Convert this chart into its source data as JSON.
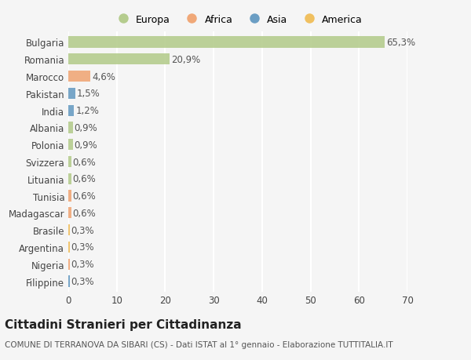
{
  "countries": [
    "Bulgaria",
    "Romania",
    "Marocco",
    "Pakistan",
    "India",
    "Albania",
    "Polonia",
    "Svizzera",
    "Lituania",
    "Tunisia",
    "Madagascar",
    "Brasile",
    "Argentina",
    "Nigeria",
    "Filippine"
  ],
  "values": [
    65.3,
    20.9,
    4.6,
    1.5,
    1.2,
    0.9,
    0.9,
    0.6,
    0.6,
    0.6,
    0.6,
    0.3,
    0.3,
    0.3,
    0.3
  ],
  "labels": [
    "65,3%",
    "20,9%",
    "4,6%",
    "1,5%",
    "1,2%",
    "0,9%",
    "0,9%",
    "0,6%",
    "0,6%",
    "0,6%",
    "0,6%",
    "0,3%",
    "0,3%",
    "0,3%",
    "0,3%"
  ],
  "continents": [
    "Europa",
    "Europa",
    "Africa",
    "Asia",
    "Asia",
    "Europa",
    "Europa",
    "Europa",
    "Europa",
    "Africa",
    "Africa",
    "America",
    "America",
    "Africa",
    "Asia"
  ],
  "colors": {
    "Europa": "#b5cc8e",
    "Africa": "#f0a878",
    "Asia": "#6b9ec4",
    "America": "#f0c060"
  },
  "legend_order": [
    "Europa",
    "Africa",
    "Asia",
    "America"
  ],
  "xlim": [
    0,
    70
  ],
  "xticks": [
    0,
    10,
    20,
    30,
    40,
    50,
    60,
    70
  ],
  "title": "Cittadini Stranieri per Cittadinanza",
  "subtitle": "COMUNE DI TERRANOVA DA SIBARI (CS) - Dati ISTAT al 1° gennaio - Elaborazione TUTTITALIA.IT",
  "background_color": "#f5f5f5",
  "grid_color": "#ffffff",
  "bar_height": 0.65,
  "label_fontsize": 8.5,
  "tick_fontsize": 8.5,
  "title_fontsize": 11,
  "subtitle_fontsize": 7.5
}
